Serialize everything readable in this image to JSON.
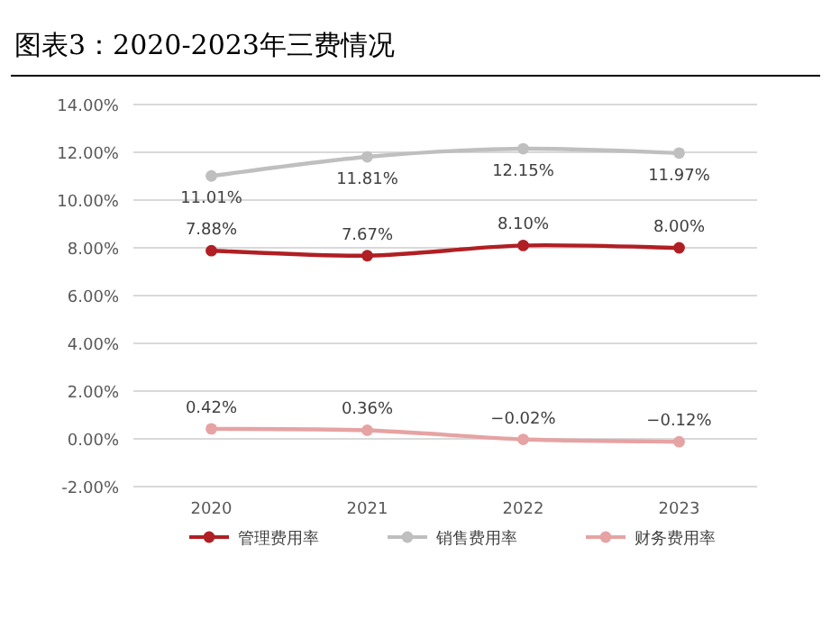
{
  "chart_data": {
    "type": "line",
    "title": "图表3：2020-2023年三费情况",
    "categories": [
      "2020",
      "2021",
      "2022",
      "2023"
    ],
    "series": [
      {
        "name": "管理费用率",
        "color": "#b01f24",
        "values": [
          7.88,
          7.67,
          8.1,
          8.0
        ],
        "value_labels": [
          "7.88%",
          "7.67%",
          "8.10%",
          "8.00%"
        ]
      },
      {
        "name": "销售费用率",
        "color": "#bfbfbf",
        "values": [
          11.01,
          11.81,
          12.15,
          11.97
        ],
        "value_labels": [
          "11.01%",
          "11.81%",
          "12.15%",
          "11.97%"
        ]
      },
      {
        "name": "财务费用率",
        "color": "#e6a3a3",
        "values": [
          0.42,
          0.36,
          -0.02,
          -0.12
        ],
        "value_labels": [
          "0.42%",
          "0.36%",
          "−0.02%",
          "−0.12%"
        ]
      }
    ],
    "ylim": [
      -2,
      14
    ],
    "yticks": [
      {
        "value": -2,
        "label": "-2.00%"
      },
      {
        "value": 0,
        "label": "0.00%"
      },
      {
        "value": 2,
        "label": "2.00%"
      },
      {
        "value": 4,
        "label": "4.00%"
      },
      {
        "value": 6,
        "label": "6.00%"
      },
      {
        "value": 8,
        "label": "8.00%"
      },
      {
        "value": 10,
        "label": "10.00%"
      },
      {
        "value": 12,
        "label": "12.00%"
      },
      {
        "value": 14,
        "label": "14.00%"
      }
    ],
    "grid": "y",
    "legend": "bottom",
    "marker": "circle",
    "line_style": "solid"
  }
}
